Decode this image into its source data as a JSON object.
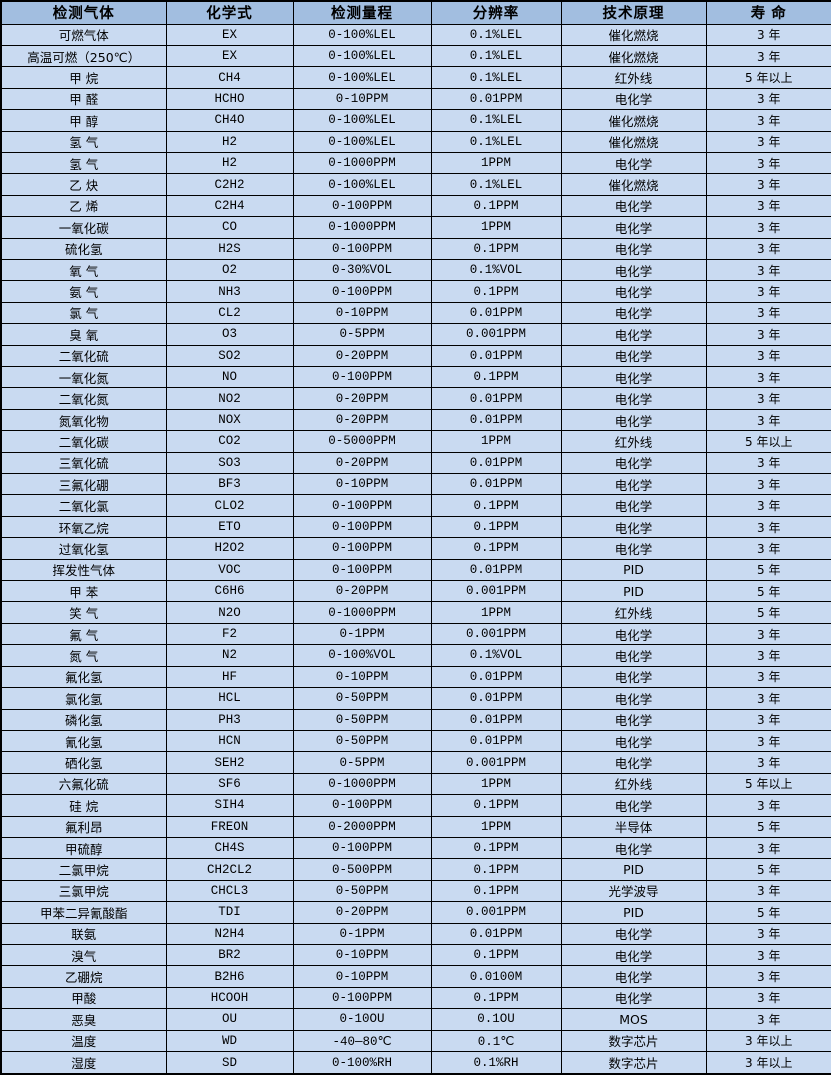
{
  "colors": {
    "header_bg": "#a2bee0",
    "row_bg": "#c9daf1",
    "border_color": "#000000",
    "text_color": "#000000"
  },
  "table": {
    "header": [
      "检测气体",
      "化学式",
      "检测量程",
      "分辨率",
      "技术原理",
      "寿 命"
    ],
    "cell_roles": [
      "gas-name-cell",
      "formula-cell",
      "range-cell",
      "resolution-cell",
      "principle-cell",
      "lifespan-cell"
    ],
    "rows": [
      [
        "可燃气体",
        "EX",
        "0-100%LEL",
        "0.1%LEL",
        "催化燃烧",
        "3 年"
      ],
      [
        "高温可燃（250℃）",
        "EX",
        "0-100%LEL",
        "0.1%LEL",
        "催化燃烧",
        "3 年"
      ],
      [
        "甲 烷",
        "CH4",
        "0-100%LEL",
        "0.1%LEL",
        "红外线",
        "5 年以上"
      ],
      [
        "甲 醛",
        "HCHO",
        "0-10PPM",
        "0.01PPM",
        "电化学",
        "3 年"
      ],
      [
        "甲 醇",
        "CH4O",
        "0-100%LEL",
        "0.1%LEL",
        "催化燃烧",
        "3 年"
      ],
      [
        "氢 气",
        "H2",
        "0-100%LEL",
        "0.1%LEL",
        "催化燃烧",
        "3 年"
      ],
      [
        "氢 气",
        "H2",
        "0-1000PPM",
        "1PPM",
        "电化学",
        "3 年"
      ],
      [
        "乙 炔",
        "C2H2",
        "0-100%LEL",
        "0.1%LEL",
        "催化燃烧",
        "3 年"
      ],
      [
        "乙 烯",
        "C2H4",
        "0-100PPM",
        "0.1PPM",
        "电化学",
        "3 年"
      ],
      [
        "一氧化碳",
        "CO",
        "0-1000PPM",
        "1PPM",
        "电化学",
        "3 年"
      ],
      [
        "硫化氢",
        "H2S",
        "0-100PPM",
        "0.1PPM",
        "电化学",
        "3 年"
      ],
      [
        "氧 气",
        "O2",
        "0-30%VOL",
        "0.1%VOL",
        "电化学",
        "3 年"
      ],
      [
        "氨 气",
        "NH3",
        "0-100PPM",
        "0.1PPM",
        "电化学",
        "3 年"
      ],
      [
        "氯 气",
        "CL2",
        "0-10PPM",
        "0.01PPM",
        "电化学",
        "3 年"
      ],
      [
        "臭 氧",
        "O3",
        "0-5PPM",
        "0.001PPM",
        "电化学",
        "3 年"
      ],
      [
        "二氧化硫",
        "SO2",
        "0-20PPM",
        "0.01PPM",
        "电化学",
        "3 年"
      ],
      [
        "一氧化氮",
        "NO",
        "0-100PPM",
        "0.1PPM",
        "电化学",
        "3 年"
      ],
      [
        "二氧化氮",
        "NO2",
        "0-20PPM",
        "0.01PPM",
        "电化学",
        "3 年"
      ],
      [
        "氮氧化物",
        "NOX",
        "0-20PPM",
        "0.01PPM",
        "电化学",
        "3 年"
      ],
      [
        "二氧化碳",
        "CO2",
        "0-5000PPM",
        "1PPM",
        "红外线",
        "5 年以上"
      ],
      [
        "三氧化硫",
        "SO3",
        "0-20PPM",
        "0.01PPM",
        "电化学",
        "3 年"
      ],
      [
        "三氟化硼",
        "BF3",
        "0-10PPM",
        "0.01PPM",
        "电化学",
        "3 年"
      ],
      [
        "二氧化氯",
        "CLO2",
        "0-100PPM",
        "0.1PPM",
        "电化学",
        "3 年"
      ],
      [
        "环氧乙烷",
        "ETO",
        "0-100PPM",
        "0.1PPM",
        "电化学",
        "3 年"
      ],
      [
        "过氧化氢",
        "H2O2",
        "0-100PPM",
        "0.1PPM",
        "电化学",
        "3 年"
      ],
      [
        "挥发性气体",
        "VOC",
        "0-100PPM",
        "0.01PPM",
        "PID",
        "5 年"
      ],
      [
        "甲 苯",
        "C6H6",
        "0-20PPM",
        "0.001PPM",
        "PID",
        "5 年"
      ],
      [
        "笑 气",
        "N2O",
        "0-1000PPM",
        "1PPM",
        "红外线",
        "5 年"
      ],
      [
        "氟 气",
        "F2",
        "0-1PPM",
        "0.001PPM",
        "电化学",
        "3 年"
      ],
      [
        "氮 气",
        "N2",
        "0-100%VOL",
        "0.1%VOL",
        "电化学",
        "3 年"
      ],
      [
        "氟化氢",
        "HF",
        "0-10PPM",
        "0.01PPM",
        "电化学",
        "3 年"
      ],
      [
        "氯化氢",
        "HCL",
        "0-50PPM",
        "0.01PPM",
        "电化学",
        "3 年"
      ],
      [
        "磷化氢",
        "PH3",
        "0-50PPM",
        "0.01PPM",
        "电化学",
        "3 年"
      ],
      [
        "氰化氢",
        "HCN",
        "0-50PPM",
        "0.01PPM",
        "电化学",
        "3 年"
      ],
      [
        "硒化氢",
        "SEH2",
        "0-5PPM",
        "0.001PPM",
        "电化学",
        "3 年"
      ],
      [
        "六氟化硫",
        "SF6",
        "0-1000PPM",
        "1PPM",
        "红外线",
        "5 年以上"
      ],
      [
        "硅 烷",
        "SIH4",
        "0-100PPM",
        "0.1PPM",
        "电化学",
        "3 年"
      ],
      [
        "氟利昂",
        "FREON",
        "0-2000PPM",
        "1PPM",
        "半导体",
        "5 年"
      ],
      [
        "甲硫醇",
        "CH4S",
        "0-100PPM",
        "0.1PPM",
        "电化学",
        "3 年"
      ],
      [
        "二氯甲烷",
        "CH2CL2",
        "0-500PPM",
        "0.1PPM",
        "PID",
        "5 年"
      ],
      [
        "三氯甲烷",
        "CHCL3",
        "0-50PPM",
        "0.1PPM",
        "光学波导",
        "3 年"
      ],
      [
        "甲苯二异氰酸酯",
        "TDI",
        "0-20PPM",
        "0.001PPM",
        "PID",
        "5 年"
      ],
      [
        "联氨",
        "N2H4",
        "0-1PPM",
        "0.01PPM",
        "电化学",
        "3 年"
      ],
      [
        "溴气",
        "BR2",
        "0-10PPM",
        "0.1PPM",
        "电化学",
        "3 年"
      ],
      [
        "乙硼烷",
        "B2H6",
        "0-10PPM",
        "0.0100M",
        "电化学",
        "3 年"
      ],
      [
        "甲酸",
        "HCOOH",
        "0-100PPM",
        "0.1PPM",
        "电化学",
        "3 年"
      ],
      [
        "恶臭",
        "OU",
        "0-10OU",
        "0.1OU",
        "MOS",
        "3 年"
      ],
      [
        "温度",
        "WD",
        "-40—80℃",
        "0.1℃",
        "数字芯片",
        "3 年以上"
      ],
      [
        "湿度",
        "SD",
        "0-100%RH",
        "0.1%RH",
        "数字芯片",
        "3 年以上"
      ]
    ]
  }
}
